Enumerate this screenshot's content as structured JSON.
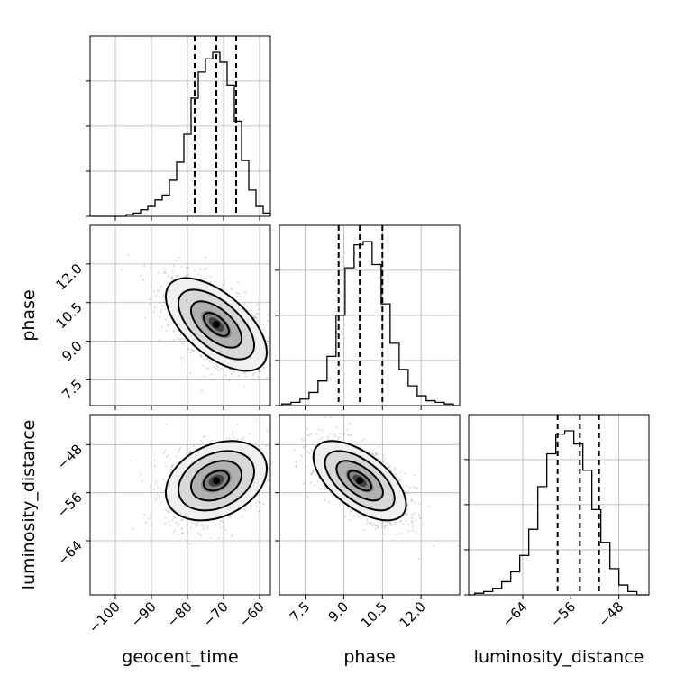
{
  "figure": {
    "type": "corner-plot",
    "parameters": [
      "geocent_time",
      "phase",
      "luminosity_distance"
    ]
  },
  "chart_data": [
    {
      "type": "histogram",
      "parameter": "geocent_time",
      "xlim": [
        -107,
        -57
      ],
      "bin_edges": [
        -97,
        -95,
        -93,
        -91,
        -89,
        -87,
        -85,
        -83,
        -81,
        -79,
        -77,
        -75,
        -73,
        -71,
        -69,
        -67,
        -65,
        -63,
        -61,
        -59,
        -57
      ],
      "counts": [
        1,
        2,
        4,
        6,
        10,
        13,
        22,
        33,
        50,
        72,
        88,
        96,
        100,
        94,
        80,
        58,
        34,
        16,
        6,
        2
      ],
      "quantiles": [
        -78,
        -72,
        -66.5
      ],
      "xticks": [
        -100,
        -90,
        -80,
        -70,
        -60
      ],
      "grid": true
    },
    {
      "type": "histogram",
      "parameter": "phase",
      "xlim": [
        6.5,
        13.5
      ],
      "bin_edges": [
        6.6,
        6.95,
        7.3,
        7.65,
        8.0,
        8.35,
        8.7,
        9.05,
        9.4,
        9.75,
        10.1,
        10.45,
        10.8,
        11.15,
        11.5,
        11.85,
        12.2,
        12.55,
        12.9,
        13.25
      ],
      "counts": [
        1,
        2,
        4,
        8,
        15,
        30,
        55,
        84,
        98,
        100,
        86,
        62,
        38,
        22,
        12,
        6,
        3,
        2,
        1
      ],
      "quantiles": [
        8.8,
        9.62,
        10.5
      ],
      "xticks": [
        7.5,
        9.0,
        10.5,
        12.0
      ],
      "grid": true
    },
    {
      "type": "histogram",
      "parameter": "luminosity_distance",
      "xlim": [
        -73,
        -43
      ],
      "bin_edges": [
        -72,
        -70.5,
        -69,
        -67.5,
        -66,
        -64.5,
        -63,
        -61.5,
        -60,
        -58.5,
        -57,
        -55.5,
        -54,
        -52.5,
        -51,
        -49.5,
        -48,
        -46.5,
        -45
      ],
      "counts": [
        1,
        2,
        4,
        8,
        14,
        24,
        40,
        66,
        86,
        98,
        100,
        92,
        76,
        52,
        32,
        16,
        6,
        2
      ],
      "quantiles": [
        -58.2,
        -54.5,
        -51.3
      ],
      "xticks": [
        -64,
        -56,
        -48
      ],
      "grid": true
    },
    {
      "type": "2d-density",
      "x": "geocent_time",
      "y": "phase",
      "xlim": [
        -107,
        -57
      ],
      "ylim": [
        6.5,
        13.5
      ],
      "center": [
        -72,
        9.65
      ],
      "sigma": [
        7.0,
        0.9
      ],
      "correlation": -0.6,
      "xticks": [
        -100,
        -90,
        -80,
        -70,
        -60
      ],
      "yticks": [
        7.5,
        9.0,
        10.5,
        12.0
      ]
    },
    {
      "type": "2d-density",
      "x": "geocent_time",
      "y": "luminosity_distance",
      "xlim": [
        -107,
        -57
      ],
      "ylim": [
        -73,
        -43
      ],
      "center": [
        -72,
        -54
      ],
      "sigma": [
        7.0,
        3.3
      ],
      "correlation": 0.3,
      "xticks": [
        -100,
        -90,
        -80,
        -70,
        -60
      ],
      "yticks": [
        -64,
        -56,
        -48
      ]
    },
    {
      "type": "2d-density",
      "x": "phase",
      "y": "luminosity_distance",
      "xlim": [
        6.5,
        13.5
      ],
      "ylim": [
        -73,
        -43
      ],
      "center": [
        9.62,
        -54
      ],
      "sigma": [
        0.9,
        3.3
      ],
      "correlation": -0.6,
      "xticks": [
        7.5,
        9.0,
        10.5,
        12.0
      ],
      "yticks": [
        -64,
        -56,
        -48
      ]
    }
  ],
  "labels": {
    "x": [
      "geocent_time",
      "phase",
      "luminosity_distance"
    ],
    "y": [
      "phase",
      "luminosity_distance"
    ]
  }
}
